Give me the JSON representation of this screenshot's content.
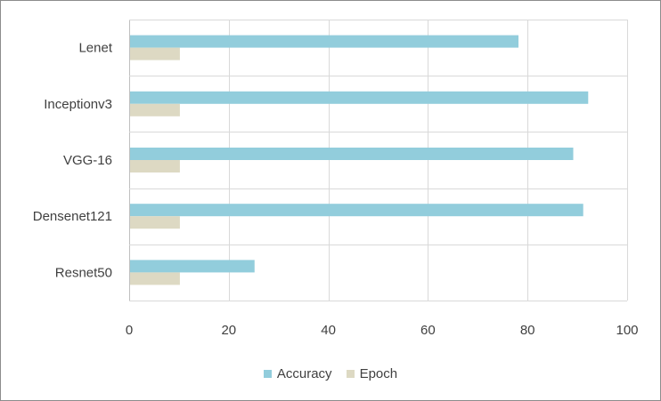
{
  "chart_data": {
    "type": "bar",
    "orientation": "horizontal",
    "categories": [
      "Lenet",
      "Inceptionv3",
      "VGG-16",
      "Densenet121",
      "Resnet50"
    ],
    "series": [
      {
        "name": "Accuracy",
        "values": [
          78,
          92,
          89,
          91,
          25
        ],
        "color": "#92cddc"
      },
      {
        "name": "Epoch",
        "values": [
          10,
          10,
          10,
          10,
          10
        ],
        "color": "#ddd9c3"
      }
    ],
    "xlim": [
      0,
      100
    ],
    "xticks": [
      "0",
      "20",
      "40",
      "60",
      "80",
      "100"
    ],
    "grid": true,
    "legend_position": "bottom"
  }
}
